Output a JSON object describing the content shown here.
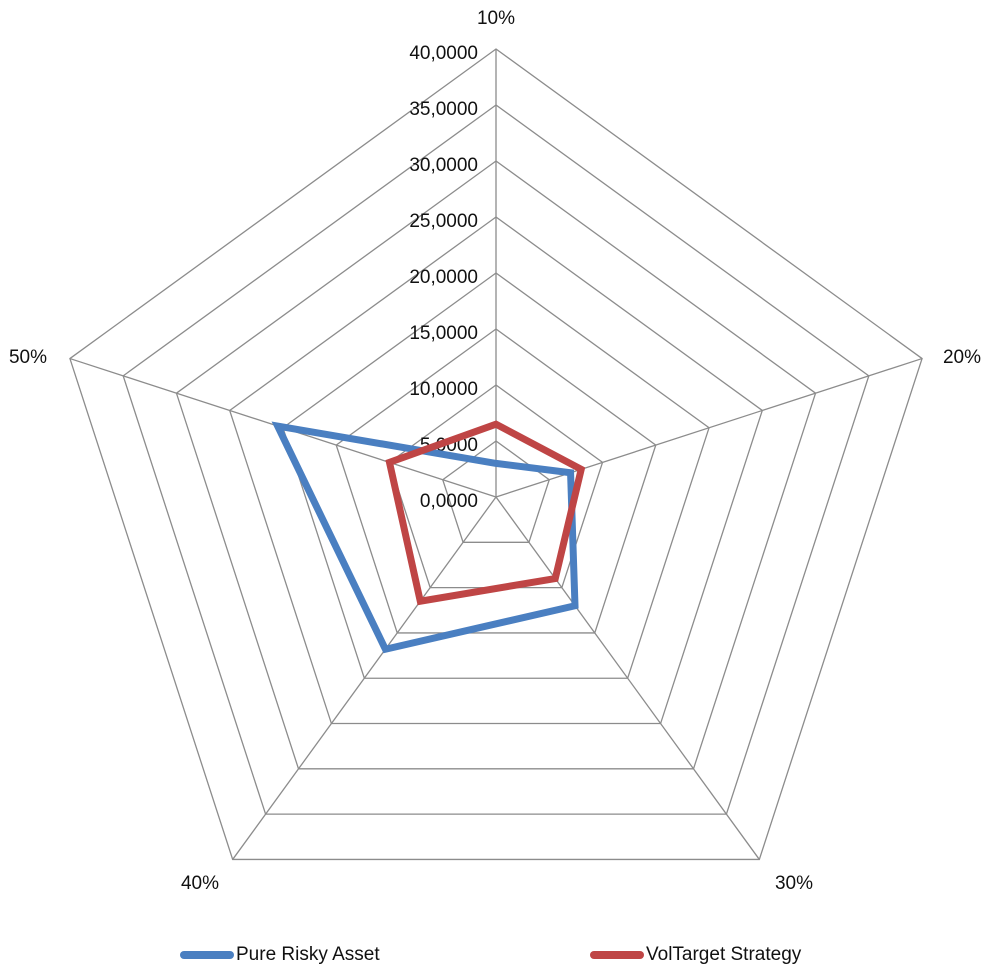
{
  "chart_data": {
    "type": "radar",
    "categories": [
      "10%",
      "20%",
      "30%",
      "40%",
      "50%"
    ],
    "tick_labels": [
      "0,0000",
      "5,0000",
      "10,0000",
      "15,0000",
      "20,0000",
      "25,0000",
      "30,0000",
      "35,0000",
      "40,0000"
    ],
    "rmin": 0,
    "rmax": 40,
    "grid": true,
    "legend": "bottom",
    "series": [
      {
        "name": "Pure Risky Asset",
        "color": "#4a7fc1",
        "values": [
          3.0,
          7.0,
          12.0,
          16.8,
          20.5
        ]
      },
      {
        "name": "VolTarget Strategy",
        "color": "#bf4545",
        "values": [
          6.5,
          8.0,
          9.0,
          11.5,
          10.0
        ]
      }
    ]
  }
}
